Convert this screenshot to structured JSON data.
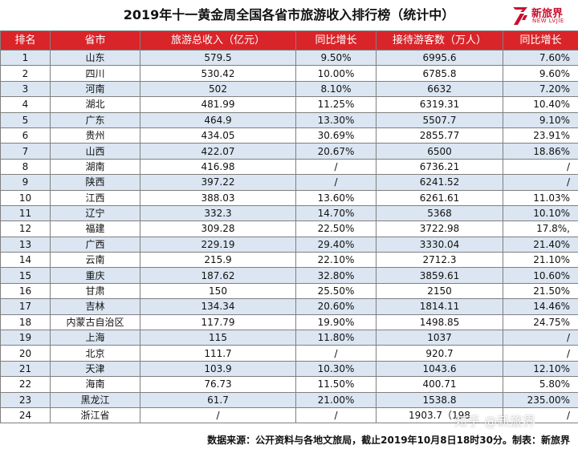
{
  "title": "2019年十一黄金周全国各省市旅游收入排行榜（统计中）",
  "logo": {
    "icon": "new-lvjie-logo-icon",
    "cn": "新旅界",
    "en": "NEW LVJIE",
    "color": "#c8102e"
  },
  "table": {
    "header_color": "#d9252a",
    "stripe_color": "#dbe6f2",
    "headers": [
      "排名",
      "省市",
      "旅游总收入（亿元）",
      "同比增长",
      "接待游客数（万人）",
      "同比增长"
    ],
    "rows": [
      [
        "1",
        "山东",
        "579.5",
        "9.50%",
        "6995.6",
        "7.60%"
      ],
      [
        "2",
        "四川",
        "530.42",
        "10.00%",
        "6785.8",
        "9.60%"
      ],
      [
        "3",
        "河南",
        "502",
        "8.10%",
        "6632",
        "7.20%"
      ],
      [
        "4",
        "湖北",
        "481.99",
        "11.25%",
        "6319.31",
        "10.40%"
      ],
      [
        "5",
        "广东",
        "464.9",
        "13.30%",
        "5507.7",
        "9.10%"
      ],
      [
        "6",
        "贵州",
        "434.05",
        "30.69%",
        "2855.77",
        "23.91%"
      ],
      [
        "7",
        "山西",
        "422.07",
        "20.67%",
        "6500",
        "18.86%"
      ],
      [
        "8",
        "湖南",
        "416.98",
        "/",
        "6736.21",
        "/"
      ],
      [
        "9",
        "陕西",
        "397.22",
        "/",
        "6241.52",
        "/"
      ],
      [
        "10",
        "江西",
        "388.03",
        "13.60%",
        "6261.61",
        "11.03%"
      ],
      [
        "11",
        "辽宁",
        "332.3",
        "14.70%",
        "5368",
        "10.10%"
      ],
      [
        "12",
        "福建",
        "309.28",
        "22.50%",
        "3722.98",
        "17.8%,"
      ],
      [
        "13",
        "广西",
        "229.19",
        "29.40%",
        "3330.04",
        "21.40%"
      ],
      [
        "14",
        "云南",
        "215.9",
        "22.10%",
        "2712.3",
        "21.10%"
      ],
      [
        "15",
        "重庆",
        "187.62",
        "32.80%",
        "3859.61",
        "10.60%"
      ],
      [
        "16",
        "甘肃",
        "150",
        "25.50%",
        "2150",
        "21.50%"
      ],
      [
        "17",
        "吉林",
        "134.34",
        "20.60%",
        "1814.11",
        "14.46%"
      ],
      [
        "18",
        "内蒙古自治区",
        "117.79",
        "19.90%",
        "1498.85",
        "24.75%"
      ],
      [
        "19",
        "上海",
        "115",
        "11.80%",
        "1037",
        "/"
      ],
      [
        "20",
        "北京",
        "111.7",
        "/",
        "920.7",
        "/"
      ],
      [
        "21",
        "天津",
        "103.9",
        "10.30%",
        "1043.6",
        "12.10%"
      ],
      [
        "22",
        "海南",
        "76.73",
        "11.50%",
        "400.71",
        "5.80%"
      ],
      [
        "23",
        "黑龙江",
        "61.7",
        "21.00%",
        "1538.8",
        "235.00%"
      ],
      [
        "24",
        "浙江省",
        "/",
        "/",
        "1903.7（198",
        "/"
      ]
    ]
  },
  "watermark": "知乎 @新旅界",
  "footer": "数据来源：公开资料与各地文旅局，截止2019年10月8日18时30分。制表：新旅界"
}
